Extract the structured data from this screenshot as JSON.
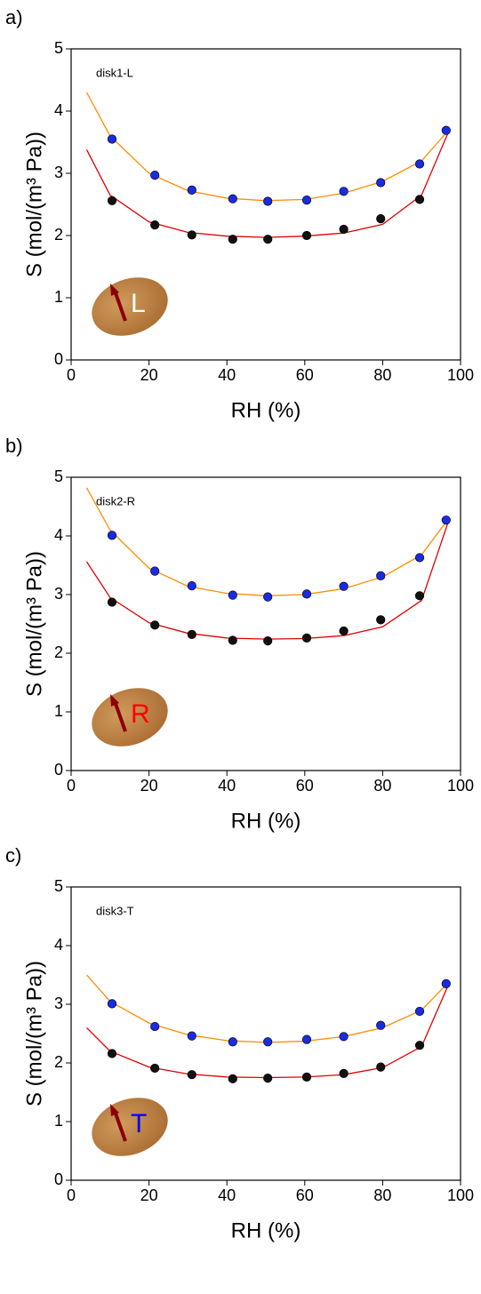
{
  "chart_data": [
    {
      "type": "scatter",
      "panel_label": "a)",
      "annotation": "disk1-L",
      "letter": "L",
      "letter_color": "#ffffff",
      "xlabel": "RH (%)",
      "ylabel": "S (mol/(m³ Pa))",
      "xlim": [
        0,
        100
      ],
      "ylim": [
        0,
        5
      ],
      "xticks": [
        0,
        20,
        40,
        60,
        80,
        100
      ],
      "yticks": [
        0,
        1,
        2,
        3,
        4,
        5
      ],
      "series": [
        {
          "kind": "line",
          "color": "#ff8c00",
          "x": [
            4,
            10,
            20,
            30,
            40,
            50,
            60,
            70,
            80,
            90,
            97
          ],
          "values": [
            4.3,
            3.6,
            3.0,
            2.72,
            2.6,
            2.56,
            2.58,
            2.68,
            2.87,
            3.2,
            3.7
          ]
        },
        {
          "kind": "line",
          "color": "#e00000",
          "x": [
            4,
            10,
            20,
            30,
            40,
            50,
            60,
            70,
            80,
            90,
            97
          ],
          "values": [
            3.38,
            2.65,
            2.22,
            2.05,
            1.99,
            1.97,
            1.99,
            2.04,
            2.18,
            2.65,
            3.68
          ]
        },
        {
          "kind": "points",
          "color": "#1a2be0",
          "x": [
            10.5,
            21.5,
            31,
            41.5,
            50.5,
            60.5,
            70,
            79.5,
            89.5,
            96.3
          ],
          "values": [
            3.55,
            2.97,
            2.73,
            2.59,
            2.55,
            2.57,
            2.71,
            2.85,
            3.15,
            3.69
          ]
        },
        {
          "kind": "points",
          "color": "#111111",
          "x": [
            10.5,
            21.5,
            31,
            41.5,
            50.5,
            60.5,
            70,
            79.5,
            89.5
          ],
          "values": [
            2.56,
            2.17,
            2.01,
            1.94,
            1.94,
            2.0,
            2.1,
            2.27,
            2.58
          ]
        }
      ]
    },
    {
      "type": "scatter",
      "panel_label": "b)",
      "annotation": "disk2-R",
      "letter": "R",
      "letter_color": "#ff0000",
      "xlabel": "RH (%)",
      "ylabel": "S (mol/(m³ Pa))",
      "xlim": [
        0,
        100
      ],
      "ylim": [
        0,
        5
      ],
      "xticks": [
        0,
        20,
        40,
        60,
        80,
        100
      ],
      "yticks": [
        0,
        1,
        2,
        3,
        4,
        5
      ],
      "series": [
        {
          "kind": "line",
          "color": "#ff8c00",
          "x": [
            4,
            10,
            20,
            30,
            40,
            50,
            60,
            70,
            80,
            90,
            97
          ],
          "values": [
            4.82,
            4.1,
            3.45,
            3.14,
            3.02,
            2.98,
            3.0,
            3.1,
            3.3,
            3.68,
            4.3
          ]
        },
        {
          "kind": "line",
          "color": "#e00000",
          "x": [
            4,
            10,
            20,
            30,
            40,
            50,
            60,
            70,
            80,
            90,
            97
          ],
          "values": [
            3.56,
            2.95,
            2.52,
            2.34,
            2.26,
            2.24,
            2.25,
            2.3,
            2.45,
            2.9,
            4.27
          ]
        },
        {
          "kind": "points",
          "color": "#1a2be0",
          "x": [
            10.5,
            21.5,
            31,
            41.5,
            50.5,
            60.5,
            70,
            79.5,
            89.5,
            96.3
          ],
          "values": [
            4.01,
            3.4,
            3.15,
            2.99,
            2.96,
            3.01,
            3.14,
            3.32,
            3.63,
            4.27
          ]
        },
        {
          "kind": "points",
          "color": "#111111",
          "x": [
            10.5,
            21.5,
            31,
            41.5,
            50.5,
            60.5,
            70,
            79.5,
            89.5
          ],
          "values": [
            2.87,
            2.48,
            2.32,
            2.22,
            2.21,
            2.26,
            2.38,
            2.57,
            2.98
          ]
        }
      ]
    },
    {
      "type": "scatter",
      "panel_label": "c)",
      "annotation": "disk3-T",
      "letter": "T",
      "letter_color": "#0000ff",
      "xlabel": "RH (%)",
      "ylabel": "S (mol/(m³ Pa))",
      "xlim": [
        0,
        100
      ],
      "ylim": [
        0,
        5
      ],
      "xticks": [
        0,
        20,
        40,
        60,
        80,
        100
      ],
      "yticks": [
        0,
        1,
        2,
        3,
        4,
        5
      ],
      "series": [
        {
          "kind": "line",
          "color": "#ff8c00",
          "x": [
            4,
            10,
            20,
            30,
            40,
            50,
            60,
            70,
            80,
            90,
            97
          ],
          "values": [
            3.5,
            3.05,
            2.68,
            2.48,
            2.38,
            2.35,
            2.37,
            2.45,
            2.6,
            2.9,
            3.38
          ]
        },
        {
          "kind": "line",
          "color": "#e00000",
          "x": [
            4,
            10,
            20,
            30,
            40,
            50,
            60,
            70,
            80,
            90,
            97
          ],
          "values": [
            2.6,
            2.2,
            1.93,
            1.81,
            1.76,
            1.75,
            1.76,
            1.8,
            1.92,
            2.28,
            3.35
          ]
        },
        {
          "kind": "points",
          "color": "#1a2be0",
          "x": [
            10.5,
            21.5,
            31,
            41.5,
            50.5,
            60.5,
            70,
            79.5,
            89.5,
            96.3
          ],
          "values": [
            3.01,
            2.62,
            2.46,
            2.36,
            2.36,
            2.4,
            2.45,
            2.64,
            2.88,
            3.35
          ]
        },
        {
          "kind": "points",
          "color": "#111111",
          "x": [
            10.5,
            21.5,
            31,
            41.5,
            50.5,
            60.5,
            70,
            79.5,
            89.5
          ],
          "values": [
            2.16,
            1.91,
            1.8,
            1.73,
            1.74,
            1.76,
            1.82,
            1.93,
            2.3
          ]
        }
      ]
    }
  ]
}
